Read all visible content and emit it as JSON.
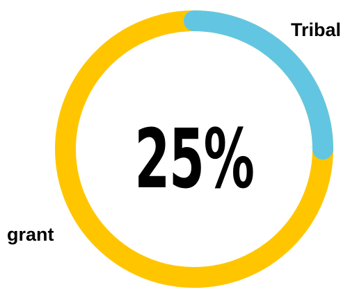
{
  "chart_data": {
    "type": "pie",
    "style": "donut",
    "center_label": "25%",
    "series": [
      {
        "name": "Tribal",
        "value": 25,
        "color": "#62C6E2",
        "label_text": "Tribal"
      },
      {
        "name": "grant",
        "value": 75,
        "color": "#FFC600",
        "label_text": "grant"
      }
    ]
  }
}
